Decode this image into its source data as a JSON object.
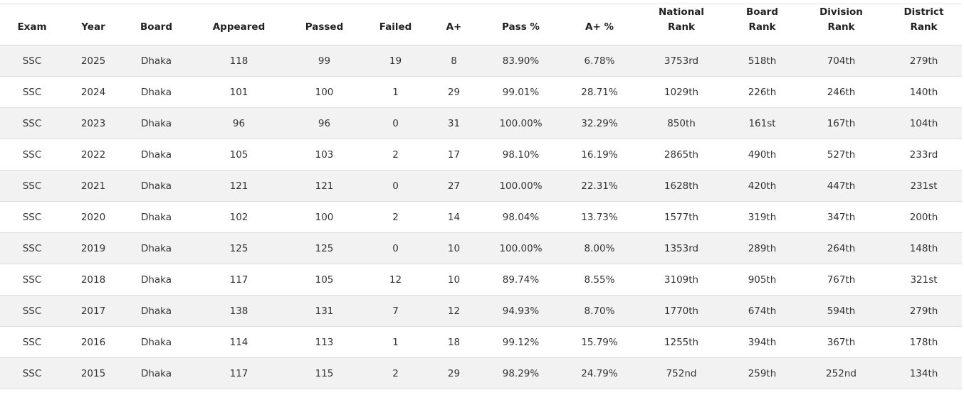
{
  "table": {
    "headers": [
      [
        "Exam"
      ],
      [
        "Year"
      ],
      [
        "Board"
      ],
      [
        "Appeared"
      ],
      [
        "Passed"
      ],
      [
        "Failed"
      ],
      [
        "A+"
      ],
      [
        "Pass %"
      ],
      [
        "A+ %"
      ],
      [
        "National",
        "Rank"
      ],
      [
        "Board",
        "Rank"
      ],
      [
        "Division",
        "Rank"
      ],
      [
        "District",
        "Rank"
      ]
    ],
    "rows": [
      [
        "SSC",
        "2025",
        "Dhaka",
        "118",
        "99",
        "19",
        "8",
        "83.90%",
        "6.78%",
        "3753rd",
        "518th",
        "704th",
        "279th"
      ],
      [
        "SSC",
        "2024",
        "Dhaka",
        "101",
        "100",
        "1",
        "29",
        "99.01%",
        "28.71%",
        "1029th",
        "226th",
        "246th",
        "140th"
      ],
      [
        "SSC",
        "2023",
        "Dhaka",
        "96",
        "96",
        "0",
        "31",
        "100.00%",
        "32.29%",
        "850th",
        "161st",
        "167th",
        "104th"
      ],
      [
        "SSC",
        "2022",
        "Dhaka",
        "105",
        "103",
        "2",
        "17",
        "98.10%",
        "16.19%",
        "2865th",
        "490th",
        "527th",
        "233rd"
      ],
      [
        "SSC",
        "2021",
        "Dhaka",
        "121",
        "121",
        "0",
        "27",
        "100.00%",
        "22.31%",
        "1628th",
        "420th",
        "447th",
        "231st"
      ],
      [
        "SSC",
        "2020",
        "Dhaka",
        "102",
        "100",
        "2",
        "14",
        "98.04%",
        "13.73%",
        "1577th",
        "319th",
        "347th",
        "200th"
      ],
      [
        "SSC",
        "2019",
        "Dhaka",
        "125",
        "125",
        "0",
        "10",
        "100.00%",
        "8.00%",
        "1353rd",
        "289th",
        "264th",
        "148th"
      ],
      [
        "SSC",
        "2018",
        "Dhaka",
        "117",
        "105",
        "12",
        "10",
        "89.74%",
        "8.55%",
        "3109th",
        "905th",
        "767th",
        "321st"
      ],
      [
        "SSC",
        "2017",
        "Dhaka",
        "138",
        "131",
        "7",
        "12",
        "94.93%",
        "8.70%",
        "1770th",
        "674th",
        "594th",
        "279th"
      ],
      [
        "SSC",
        "2016",
        "Dhaka",
        "114",
        "113",
        "1",
        "18",
        "99.12%",
        "15.79%",
        "1255th",
        "394th",
        "367th",
        "178th"
      ],
      [
        "SSC",
        "2015",
        "Dhaka",
        "117",
        "115",
        "2",
        "29",
        "98.29%",
        "24.79%",
        "752nd",
        "259th",
        "252nd",
        "134th"
      ]
    ]
  }
}
